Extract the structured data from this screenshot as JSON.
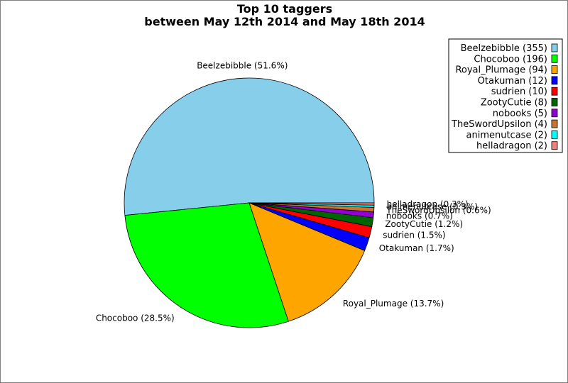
{
  "chart_data": {
    "type": "pie",
    "title_lines": [
      "Top 10 taggers",
      "between May 12th 2014 and May 18th 2014"
    ],
    "legend_position": "top-right",
    "slices": [
      {
        "name": "Beelzebibble",
        "value": 355,
        "label": "Beelzebibble (51.6%)",
        "legend": "Beelzebibble (355)",
        "color": "#87ceeb"
      },
      {
        "name": "Chocoboo",
        "value": 196,
        "label": "Chocoboo (28.5%)",
        "legend": "Chocoboo (196)",
        "color": "#00ff00"
      },
      {
        "name": "Royal_Plumage",
        "value": 94,
        "label": "Royal_Plumage (13.7%)",
        "legend": "Royal_Plumage (94)",
        "color": "#ffa500"
      },
      {
        "name": "Otakuman",
        "value": 12,
        "label": "Otakuman (1.7%)",
        "legend": "Otakuman (12)",
        "color": "#0000ff"
      },
      {
        "name": "sudrien",
        "value": 10,
        "label": "sudrien (1.5%)",
        "legend": "sudrien (10)",
        "color": "#ff0000"
      },
      {
        "name": "ZootyCutie",
        "value": 8,
        "label": "ZootyCutie (1.2%)",
        "legend": "ZootyCutie (8)",
        "color": "#006400"
      },
      {
        "name": "nobooks",
        "value": 5,
        "label": "nobooks (0.7%)",
        "legend": "nobooks (5)",
        "color": "#9400d3"
      },
      {
        "name": "TheSwordUpsilon",
        "value": 4,
        "label": "TheSwordUpsilon (0.6%)",
        "legend": "TheSwordUpsilon (4)",
        "color": "#c87533"
      },
      {
        "name": "animenutcase",
        "value": 2,
        "label": "animenutcase (0.3%)",
        "legend": "animenutcase (2)",
        "color": "#00ffff"
      },
      {
        "name": "helladragon",
        "value": 2,
        "label": "helladragon (0.3%)",
        "legend": "helladragon (2)",
        "color": "#f08080"
      }
    ]
  }
}
